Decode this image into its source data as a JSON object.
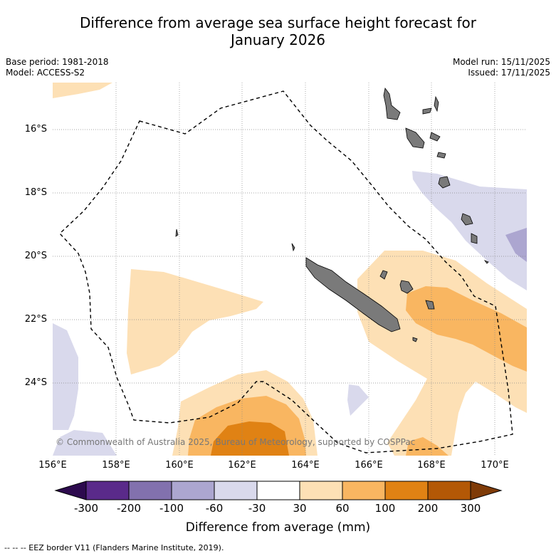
{
  "title_line1": "Difference from average sea surface height forecast for",
  "title_line2": "January 2026",
  "meta_left": [
    "Base period: 1981-2018",
    "Model: ACCESS-S2"
  ],
  "meta_right": [
    "Model run: 15/11/2025",
    "Issued: 17/11/2025"
  ],
  "map": {
    "lat_labels": [
      "16°S",
      "18°S",
      "20°S",
      "22°S",
      "24°S"
    ],
    "lon_labels": [
      "156°E",
      "158°E",
      "160°E",
      "162°E",
      "164°E",
      "166°E",
      "168°E",
      "170°E"
    ],
    "copyright": "© Commonwealth of Australia 2025, Bureau of Meteorology, supported by COSPPac"
  },
  "colorbar": {
    "ticks": [
      "-300",
      "-200",
      "-100",
      "-60",
      "-30",
      "30",
      "60",
      "100",
      "200",
      "300"
    ],
    "colors": [
      "#2d0a4e",
      "#5a2a8a",
      "#8271ae",
      "#aca6d0",
      "#d9d9ec",
      "#ffffff",
      "#fde0b5",
      "#f9b661",
      "#e08214",
      "#b35806",
      "#7f3b08"
    ],
    "label": "Difference from average (mm)"
  },
  "footnote": "-- -- -- EEZ border V11 (Flanders Marine Institute, 2019)."
}
